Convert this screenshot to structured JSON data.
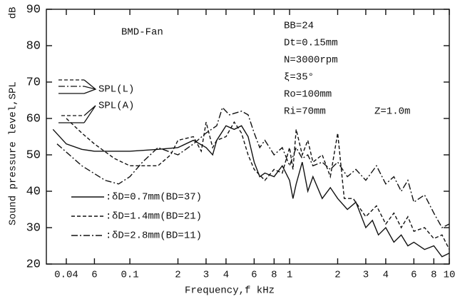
{
  "chart_data": {
    "type": "line",
    "x_label": "Frequency,f  kHz",
    "y_label": "Sound pressure level,SPL",
    "y_unit": "dB",
    "log_x": true,
    "xlim": [
      0.03,
      10
    ],
    "ylim": [
      20,
      90
    ],
    "xticks": [
      {
        "value": 0.04,
        "label": "0.04"
      },
      {
        "value": 0.06,
        "label": "6"
      },
      0.1,
      {
        "value": 0.2,
        "label": "2"
      },
      {
        "value": 0.3,
        "label": "3"
      },
      {
        "value": 0.4,
        "label": "4"
      },
      {
        "value": 0.6,
        "label": "6"
      },
      {
        "value": 0.8,
        "label": "8"
      },
      1,
      2,
      3,
      4,
      6,
      8,
      10
    ],
    "yticks": [
      20,
      30,
      40,
      50,
      60,
      70,
      80,
      90
    ],
    "annotations": [
      "BMD-Fan",
      "BB=24",
      "Dt=0.15mm",
      "N=3000rpm",
      "ξ=35°",
      "Ro=100mm",
      "Ri=70mm",
      "Z=1.0m",
      "SPL(L)",
      "SPL(A)"
    ],
    "series": [
      {
        "name": "δD=0.7mm(BD=37)",
        "color": "#111",
        "dash": "none",
        "x": [
          0.033,
          0.04,
          0.05,
          0.06,
          0.08,
          0.1,
          0.15,
          0.2,
          0.25,
          0.3,
          0.33,
          0.35,
          0.4,
          0.45,
          0.5,
          0.55,
          0.6,
          0.65,
          0.7,
          0.8,
          0.9,
          1.0,
          1.05,
          1.1,
          1.2,
          1.3,
          1.4,
          1.6,
          1.8,
          2.0,
          2.3,
          2.6,
          3.0,
          3.3,
          3.6,
          4.0,
          4.5,
          5,
          5.5,
          6,
          7,
          8,
          9,
          10
        ],
        "values": [
          57,
          53,
          51.5,
          51,
          51,
          51,
          51.5,
          52,
          54,
          52,
          50,
          54,
          58,
          57,
          58,
          55,
          48,
          44,
          45,
          44,
          47,
          43,
          38,
          42,
          48,
          40,
          44,
          38,
          41,
          38,
          35,
          37,
          30,
          32,
          28,
          30,
          26,
          28,
          25,
          26,
          24,
          25,
          22,
          23
        ]
      },
      {
        "name": "δD=1.4mm(BD=21)",
        "color": "#111",
        "dash": "5 3",
        "x": [
          0.04,
          0.05,
          0.06,
          0.08,
          0.1,
          0.12,
          0.15,
          0.18,
          0.2,
          0.25,
          0.28,
          0.3,
          0.33,
          0.35,
          0.4,
          0.45,
          0.5,
          0.55,
          0.6,
          0.7,
          0.8,
          0.9,
          1.0,
          1.05,
          1.1,
          1.2,
          1.3,
          1.4,
          1.6,
          1.8,
          2.0,
          2.2,
          2.5,
          3.0,
          3.5,
          4.0,
          4.5,
          5.0,
          5.5,
          6,
          7,
          8,
          9,
          10
        ],
        "values": [
          60,
          56,
          53,
          49,
          47,
          47,
          47,
          50,
          54,
          55,
          51,
          59,
          52,
          54,
          55,
          59,
          56,
          50,
          46,
          43,
          46,
          45,
          52,
          46,
          57,
          50,
          54,
          48,
          50,
          44,
          56,
          38,
          38,
          33,
          36,
          31,
          34,
          30,
          33,
          29,
          30,
          27,
          28,
          24
        ]
      },
      {
        "name": "δD=2.8mm(BD=11)",
        "color": "#111",
        "dash": "9 3 2 3",
        "x": [
          0.035,
          0.05,
          0.07,
          0.085,
          0.1,
          0.12,
          0.15,
          0.2,
          0.25,
          0.3,
          0.35,
          0.38,
          0.42,
          0.5,
          0.55,
          0.6,
          0.65,
          0.7,
          0.8,
          0.9,
          1.0,
          1.1,
          1.2,
          1.3,
          1.4,
          1.6,
          1.8,
          2.0,
          2.3,
          2.6,
          3.0,
          3.5,
          4.0,
          4.5,
          5.0,
          5.5,
          6.0,
          7,
          8,
          9,
          10
        ],
        "values": [
          53,
          47,
          43,
          42,
          44,
          48,
          52,
          50,
          53,
          56,
          58,
          63,
          61,
          62,
          61,
          56,
          52,
          54,
          50,
          52,
          47,
          52,
          49,
          50,
          47,
          48,
          46,
          48,
          44,
          46,
          43,
          47,
          42,
          44,
          40,
          43,
          37,
          39,
          34,
          30,
          31
        ]
      }
    ]
  }
}
